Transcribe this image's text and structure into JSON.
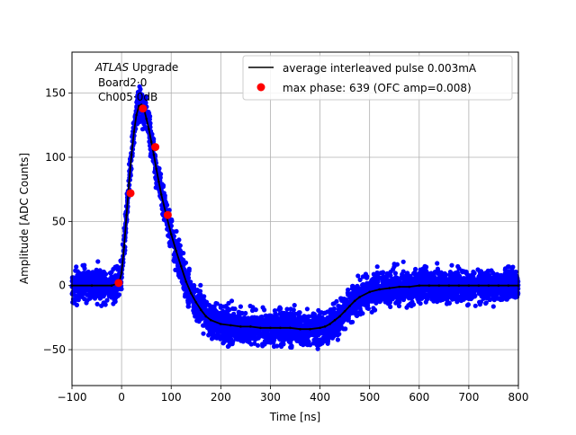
{
  "chart_data": {
    "type": "scatter",
    "title": "",
    "xlabel": "Time [ns]",
    "ylabel": "Amplitude [ADC Counts]",
    "xlim": [
      -100,
      800
    ],
    "ylim": [
      -78,
      182
    ],
    "xticks": [
      -100,
      0,
      100,
      200,
      300,
      400,
      500,
      600,
      700,
      800
    ],
    "xtick_labels": [
      "−100",
      "0",
      "100",
      "200",
      "300",
      "400",
      "500",
      "600",
      "700",
      "800"
    ],
    "yticks": [
      -50,
      0,
      50,
      100,
      150
    ],
    "ytick_labels": [
      "−50",
      "0",
      "50",
      "100",
      "150"
    ],
    "grid": true,
    "legend_position": "top-right",
    "annotation": {
      "italic": "ATLAS",
      "line1": " Upgrade",
      "line2": "Board2·0",
      "line3": "Ch005·0dB"
    },
    "colors": {
      "samples": "#0000ff",
      "average": "#000000",
      "max_phase": "#ff0000"
    },
    "series": [
      {
        "name": "average interleaved pulse 0.003mA",
        "kind": "line",
        "x": [
          -100,
          -60,
          -20,
          -5,
          0,
          5,
          10,
          15,
          20,
          25,
          30,
          35,
          40,
          45,
          50,
          55,
          60,
          65,
          70,
          75,
          80,
          90,
          100,
          110,
          120,
          130,
          140,
          150,
          160,
          170,
          180,
          200,
          220,
          240,
          260,
          280,
          300,
          320,
          340,
          360,
          380,
          400,
          410,
          420,
          430,
          440,
          450,
          460,
          470,
          480,
          500,
          520,
          540,
          560,
          580,
          600,
          620,
          640,
          660,
          680,
          700,
          720,
          740,
          760,
          780,
          800
        ],
        "y": [
          0,
          0,
          0,
          2,
          10,
          30,
          55,
          80,
          102,
          120,
          133,
          140,
          141,
          138,
          130,
          122,
          112,
          102,
          91,
          81,
          71,
          55,
          40,
          27,
          15,
          3,
          -6,
          -13,
          -19,
          -24,
          -27,
          -30,
          -31,
          -32,
          -32,
          -33,
          -33,
          -33,
          -33,
          -34,
          -34,
          -33,
          -32,
          -30,
          -27,
          -24,
          -20,
          -16,
          -12,
          -9,
          -5,
          -3,
          -2,
          -1,
          -1,
          0,
          0,
          0,
          0,
          0,
          0,
          0,
          0,
          0,
          0,
          0
        ]
      },
      {
        "name": "max phase: 639 (OFC amp=0.008)",
        "kind": "points",
        "x": [
          -6,
          18,
          43,
          68,
          93
        ],
        "y": [
          2,
          72,
          138,
          108,
          55
        ]
      }
    ]
  }
}
